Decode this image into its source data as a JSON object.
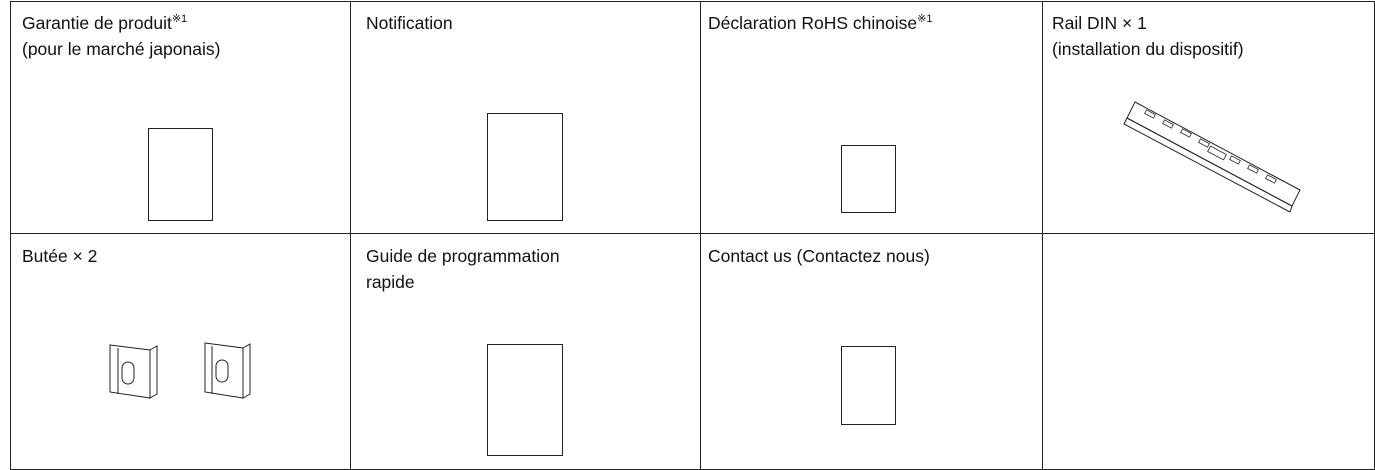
{
  "cells": [
    {
      "lines": [
        "Garantie de produit",
        "(pour le marché japonais)"
      ],
      "note": "※1"
    },
    {
      "lines": [
        "Notification"
      ]
    },
    {
      "lines": [
        "Déclaration RoHS chinoise"
      ],
      "note": "※1"
    },
    {
      "lines": [
        "Rail DIN × 1",
        "(installation du dispositif)"
      ]
    },
    {
      "lines": [
        "Butée × 2"
      ]
    },
    {
      "lines": [
        "Guide de programmation",
        "rapide"
      ]
    },
    {
      "lines": [
        "Contact us (Contactez nous)"
      ]
    }
  ]
}
